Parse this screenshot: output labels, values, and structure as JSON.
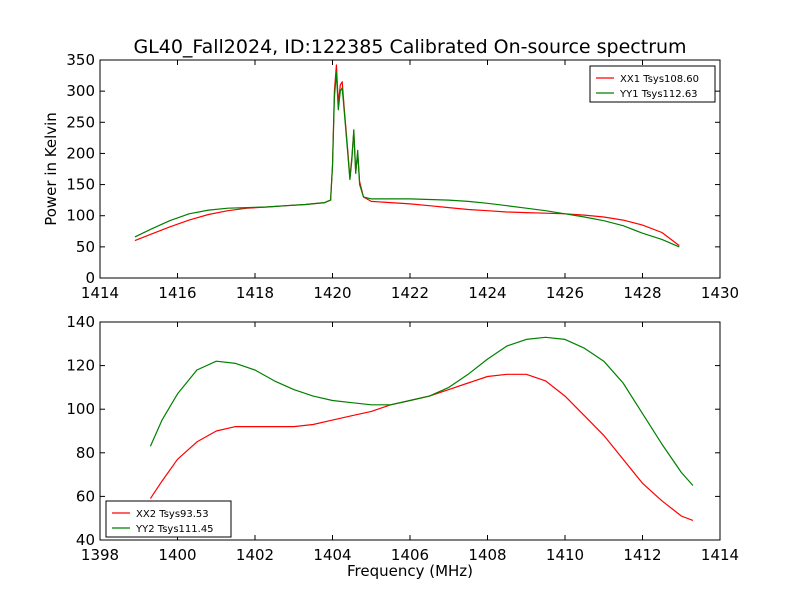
{
  "title": "GL40_Fall2024, ID:122385 Calibrated On-source spectrum",
  "chart_data": [
    {
      "type": "line",
      "xlabel": "",
      "ylabel": "Power in Kelvin",
      "xlim": [
        1414,
        1430
      ],
      "ylim": [
        0,
        350
      ],
      "xticks": [
        1414,
        1416,
        1418,
        1420,
        1422,
        1424,
        1426,
        1428,
        1430
      ],
      "yticks": [
        0,
        50,
        100,
        150,
        200,
        250,
        300,
        350
      ],
      "legend_position": "top-right",
      "series": [
        {
          "name": "XX1 Tsys108.60",
          "color": "#ff0000",
          "x": [
            1414.9,
            1415.3,
            1415.8,
            1416.3,
            1416.8,
            1417.3,
            1417.8,
            1418.3,
            1418.8,
            1419.3,
            1419.8,
            1419.95,
            1420.0,
            1420.05,
            1420.1,
            1420.15,
            1420.2,
            1420.25,
            1420.3,
            1420.4,
            1420.45,
            1420.5,
            1420.55,
            1420.6,
            1420.65,
            1420.7,
            1420.8,
            1421.0,
            1421.5,
            1422.0,
            1422.5,
            1423.0,
            1423.5,
            1424.0,
            1424.5,
            1425.0,
            1425.5,
            1426.0,
            1426.5,
            1427.0,
            1427.5,
            1428.0,
            1428.5,
            1428.95
          ],
          "y": [
            60,
            70,
            82,
            93,
            102,
            108,
            112,
            114,
            116,
            118,
            121,
            125,
            180,
            300,
            342,
            280,
            310,
            315,
            275,
            200,
            160,
            195,
            235,
            170,
            200,
            155,
            130,
            123,
            121,
            119,
            116,
            113,
            110,
            108,
            106,
            105,
            104,
            103,
            101,
            98,
            93,
            85,
            73,
            52
          ]
        },
        {
          "name": "YY1 Tsys112.63",
          "color": "#008000",
          "x": [
            1414.9,
            1415.3,
            1415.8,
            1416.3,
            1416.8,
            1417.3,
            1417.8,
            1418.3,
            1418.8,
            1419.3,
            1419.8,
            1419.95,
            1420.0,
            1420.05,
            1420.1,
            1420.15,
            1420.2,
            1420.25,
            1420.3,
            1420.4,
            1420.45,
            1420.5,
            1420.55,
            1420.6,
            1420.65,
            1420.7,
            1420.8,
            1421.0,
            1421.5,
            1422.0,
            1422.5,
            1423.0,
            1423.5,
            1424.0,
            1424.5,
            1425.0,
            1425.5,
            1426.0,
            1426.5,
            1427.0,
            1427.5,
            1428.0,
            1428.5,
            1428.95
          ],
          "y": [
            66,
            78,
            92,
            103,
            109,
            112,
            113,
            114,
            116,
            118,
            121,
            125,
            180,
            290,
            330,
            270,
            300,
            305,
            270,
            195,
            158,
            190,
            238,
            168,
            205,
            150,
            130,
            127,
            127,
            127,
            126,
            125,
            123,
            120,
            116,
            112,
            108,
            103,
            98,
            92,
            84,
            72,
            62,
            50
          ]
        }
      ]
    },
    {
      "type": "line",
      "xlabel": "Frequency (MHz)",
      "ylabel": "",
      "xlim": [
        1398,
        1414
      ],
      "ylim": [
        40,
        140
      ],
      "xticks": [
        1398,
        1400,
        1402,
        1404,
        1406,
        1408,
        1410,
        1412,
        1414
      ],
      "yticks": [
        40,
        60,
        80,
        100,
        120,
        140
      ],
      "legend_position": "bottom-left",
      "series": [
        {
          "name": "XX2 Tsys93.53",
          "color": "#ff0000",
          "x": [
            1399.3,
            1399.6,
            1400.0,
            1400.5,
            1401.0,
            1401.5,
            1402.0,
            1402.5,
            1403.0,
            1403.5,
            1404.0,
            1404.5,
            1405.0,
            1405.5,
            1406.0,
            1406.5,
            1407.0,
            1407.5,
            1408.0,
            1408.5,
            1409.0,
            1409.5,
            1410.0,
            1410.5,
            1411.0,
            1411.5,
            1412.0,
            1412.5,
            1413.0,
            1413.3
          ],
          "y": [
            59,
            67,
            77,
            85,
            90,
            92,
            92,
            92,
            92,
            93,
            95,
            97,
            99,
            102,
            104,
            106,
            109,
            112,
            115,
            116,
            116,
            113,
            106,
            97,
            88,
            77,
            66,
            58,
            51,
            49
          ]
        },
        {
          "name": "YY2 Tsys111.45",
          "color": "#008000",
          "x": [
            1399.3,
            1399.6,
            1400.0,
            1400.5,
            1401.0,
            1401.5,
            1402.0,
            1402.5,
            1403.0,
            1403.5,
            1404.0,
            1404.5,
            1405.0,
            1405.5,
            1406.0,
            1406.5,
            1407.0,
            1407.5,
            1408.0,
            1408.5,
            1409.0,
            1409.5,
            1410.0,
            1410.5,
            1411.0,
            1411.5,
            1412.0,
            1412.5,
            1413.0,
            1413.3
          ],
          "y": [
            83,
            95,
            107,
            118,
            122,
            121,
            118,
            113,
            109,
            106,
            104,
            103,
            102,
            102,
            104,
            106,
            110,
            116,
            123,
            129,
            132,
            133,
            132,
            128,
            122,
            112,
            98,
            84,
            71,
            65
          ]
        }
      ]
    }
  ]
}
